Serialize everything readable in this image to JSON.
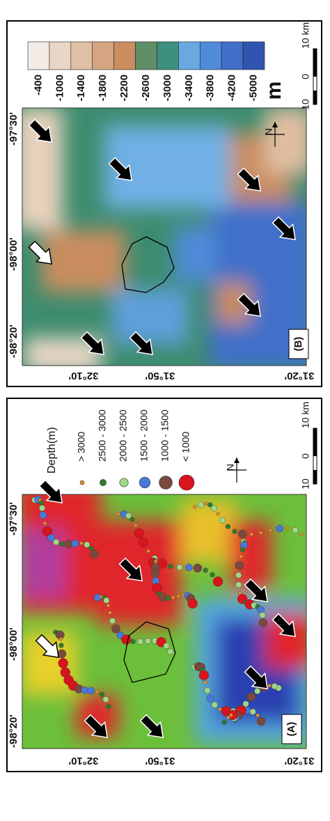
{
  "panels": [
    {
      "label": "(A)",
      "lon_ticks": [
        "-98°20'",
        "-98°00'",
        "-97°30'"
      ],
      "lat_ticks": [
        "32°10'",
        "31°50'",
        "31°20'"
      ],
      "legend": {
        "title": "Depth(m)",
        "entries": [
          {
            "label": "> 3000",
            "color": "#e8912c"
          },
          {
            "label": "2500  -  3000",
            "color": "#2f7a2a"
          },
          {
            "label": "2000  -  2500",
            "color": "#9fd68a"
          },
          {
            "label": "1500  -  2000",
            "color": "#4a78d8"
          },
          {
            "label": "1000  -  1500",
            "color": "#7a4a3e"
          },
          {
            "label": "< 1000",
            "color": "#d8141c"
          }
        ]
      },
      "scale": [
        "10",
        "0",
        "10 km"
      ],
      "north": "N"
    },
    {
      "label": "(B)",
      "lon_ticks": [
        "-98°20'",
        "-98°00'",
        "-97°30'"
      ],
      "lat_ticks": [
        "32°10'",
        "31°50'",
        "31°20'"
      ],
      "colorbar": {
        "labels": [
          "-400",
          "-1000",
          "-1400",
          "-1800",
          "-2200",
          "-2600",
          "-3000",
          "-3400",
          "-3800",
          "-4200",
          "-5000"
        ],
        "unit": "m"
      },
      "scale": [
        "10",
        "0",
        "10 km"
      ],
      "north": "N"
    }
  ]
}
